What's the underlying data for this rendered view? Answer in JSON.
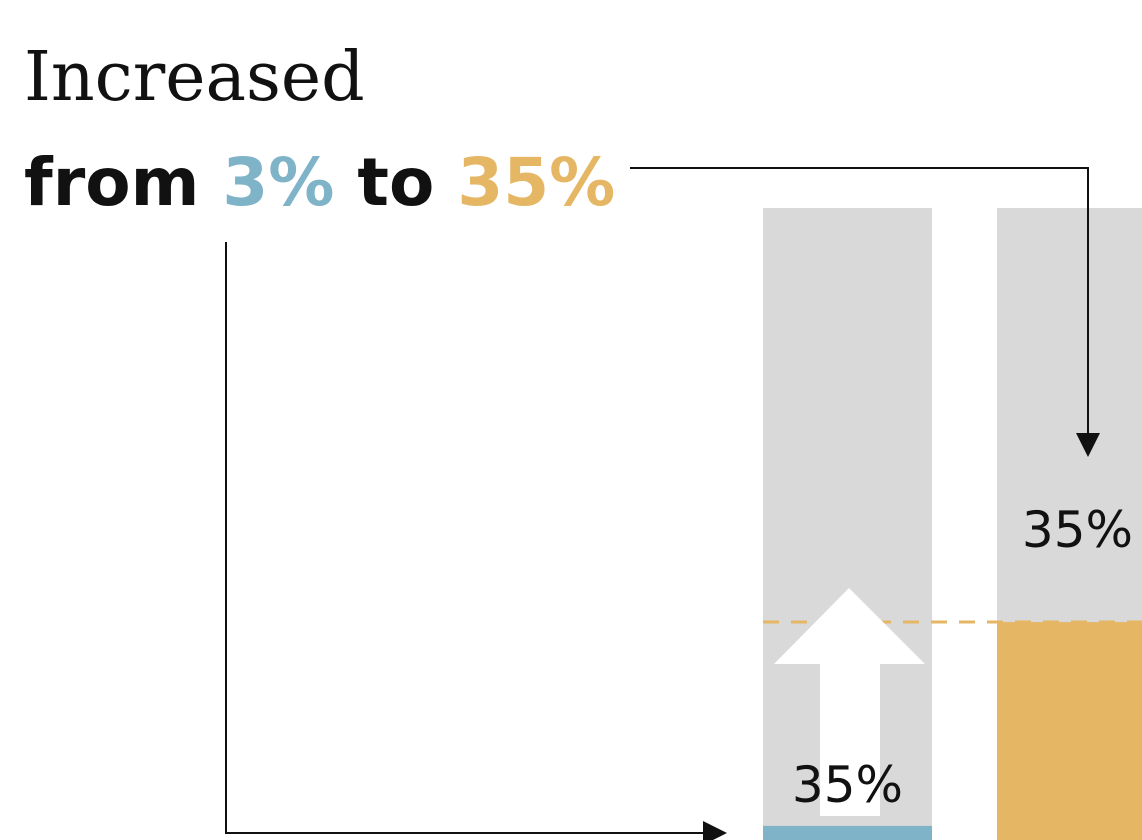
{
  "chart_data": {
    "type": "bar",
    "title": {
      "line1": "Increased",
      "line2": [
        "from",
        "3%",
        "to",
        "35%"
      ]
    },
    "categories": [
      null,
      null
    ],
    "values": [
      3,
      35
    ],
    "value_labels": [
      null,
      "35%"
    ],
    "annotations": [
      {
        "text": "35%"
      }
    ],
    "colors": [
      "#7fb3c8",
      "#e5b765"
    ],
    "background_color": "#d9d9d9",
    "ylim": [
      0,
      100
    ]
  }
}
